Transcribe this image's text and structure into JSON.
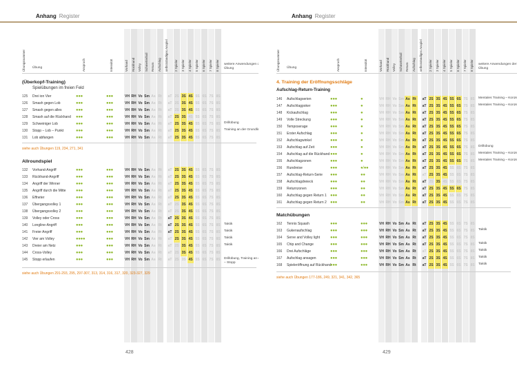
{
  "left": {
    "header": {
      "title": "Anhang",
      "sub": "Register"
    },
    "page_number": "428",
    "columns": {
      "nummer": "Übungsnummer",
      "uebung": "Übung",
      "anspruch": "Anspruch",
      "intensitaet": "Intensität",
      "vorhand": "Vorhand",
      "rueckhand": "Rückhand",
      "volley": "Volley",
      "schmetterball": "Schmetterball",
      "return": "Return",
      "aufschlag": "Aufschlag",
      "selbstaendig": "selbstständiges Anspiel",
      "s2": "2 Spieler",
      "s3": "3 Spieler",
      "s4": "4 Spieler",
      "s5": "5 Spieler",
      "s6": "6 Spieler",
      "s7": "7 Spieler",
      "s8": "8 Spieler",
      "weitere": "weitere Anwendungen der Übung"
    },
    "section1": {
      "title": "(Überkopf-Training)",
      "subtitle": "Spielübungen im freien Feld",
      "rows": [
        {
          "n": "125",
          "t": "Drei ion Vier",
          "d": "●●●",
          "i": "●●●",
          "tags": [
            "VH",
            "RH",
            "Vo",
            "Sm"
          ],
          "p": [
            "3S",
            "4S"
          ],
          "note": ""
        },
        {
          "n": "126",
          "t": "Smash gegen Lob",
          "d": "●●●",
          "i": "●●●",
          "tags": [
            "VH",
            "RH",
            "Vo",
            "Sm"
          ],
          "p": [
            "3S",
            "4S"
          ],
          "note": ""
        },
        {
          "n": "127",
          "t": "Smash gegen alles",
          "d": "●●●",
          "i": "●●●",
          "tags": [
            "VH",
            "RH",
            "Vo",
            "Sm"
          ],
          "p": [
            "3S",
            "4S"
          ],
          "note": ""
        },
        {
          "n": "128",
          "t": "Smash auf die Rückhand",
          "d": "●●●",
          "i": "●●●",
          "tags": [
            "VH",
            "RH",
            "Vo",
            "Sm"
          ],
          "p": [
            "2S",
            "3S"
          ],
          "note": ""
        },
        {
          "n": "129",
          "t": "Schweiniger Lob",
          "d": "●●●",
          "i": "●●●",
          "tags": [
            "VH",
            "RH",
            "Vo",
            "Sm"
          ],
          "p": [
            "2S",
            "3S",
            "4S"
          ],
          "note": "Drillübung"
        },
        {
          "n": "130",
          "t": "Stopp – Lob – Punkt",
          "d": "●●●",
          "i": "●●●",
          "tags": [
            "VH",
            "RH",
            "Vo",
            "Sm"
          ],
          "p": [
            "2S",
            "3S",
            "4S"
          ],
          "note": "Training an der Grundlinie – Stopp"
        },
        {
          "n": "131",
          "t": "Lob abfangen",
          "d": "●●●",
          "i": "●●●",
          "tags": [
            "VH",
            "RH",
            "Vo",
            "Sm"
          ],
          "p": [
            "2S",
            "3S",
            "4S"
          ],
          "note": ""
        }
      ],
      "see": "siehe auch Übungen 119, 234, 271, 341"
    },
    "section2": {
      "title": "Allroundspiel",
      "rows": [
        {
          "n": "132",
          "t": "Vorhand-Angriff",
          "d": "●●●",
          "i": "●●●",
          "tags": [
            "VH",
            "RH",
            "Vo",
            "Sm"
          ],
          "p": [
            "2S",
            "3S",
            "4S"
          ],
          "note": ""
        },
        {
          "n": "133",
          "t": "Rückhand-Angriff",
          "d": "●●●",
          "i": "●●●",
          "tags": [
            "VH",
            "RH",
            "Vo",
            "Sm"
          ],
          "p": [
            "2S",
            "3S",
            "4S"
          ],
          "note": ""
        },
        {
          "n": "134",
          "t": "Angriff der Winner",
          "d": "●●●",
          "i": "●●●",
          "tags": [
            "VH",
            "RH",
            "Vo",
            "Sm"
          ],
          "p": [
            "2S",
            "3S",
            "4S"
          ],
          "note": ""
        },
        {
          "n": "135",
          "t": "Angriff durch die Mitte",
          "d": "●●●",
          "i": "●●●",
          "tags": [
            "VH",
            "RH",
            "Vo",
            "Sm"
          ],
          "p": [
            "2S",
            "3S",
            "4S"
          ],
          "note": ""
        },
        {
          "n": "136",
          "t": "Effneter",
          "d": "●●●",
          "i": "●●●",
          "tags": [
            "VH",
            "RH",
            "Vo",
            "Sm"
          ],
          "p": [
            "2S",
            "3S",
            "4S"
          ],
          "note": ""
        },
        {
          "n": "137",
          "t": "Übergangsvolley 1",
          "d": "●●●",
          "i": "●●●",
          "tags": [
            "VH",
            "RH",
            "Vo",
            "Sm"
          ],
          "p": [
            "3S",
            "4S"
          ],
          "note": ""
        },
        {
          "n": "138",
          "t": "Übergangsvolley 2",
          "d": "●●●",
          "i": "●●●",
          "tags": [
            "VH",
            "RH",
            "Vo",
            "Sm"
          ],
          "p": [
            "3S",
            "4S"
          ],
          "note": ""
        },
        {
          "n": "139",
          "t": "Volley oder Cross",
          "d": "●●●",
          "i": "●●●",
          "tags": [
            "VH",
            "RH",
            "Vo",
            "Sm"
          ],
          "p": [
            "aT",
            "2S",
            "3S",
            "4S"
          ],
          "note": ""
        },
        {
          "n": "140",
          "t": "Longline-Angriff",
          "d": "●●●",
          "i": "●●●",
          "tags": [
            "VH",
            "RH",
            "Vo",
            "Sm"
          ],
          "p": [
            "aT",
            "2S",
            "3S",
            "4S"
          ],
          "note": "Taktik"
        },
        {
          "n": "141",
          "t": "Freier Angriff",
          "d": "●●●",
          "i": "●●●",
          "tags": [
            "VH",
            "RH",
            "Vo",
            "Sm"
          ],
          "p": [
            "aT",
            "2S",
            "3S",
            "4S"
          ],
          "note": "Taktik"
        },
        {
          "n": "142",
          "t": "Vier am Volley",
          "d": "●●●●",
          "i": "●●●",
          "tags": [
            "VH",
            "RH",
            "Vo",
            "Sm"
          ],
          "p": [
            "2S",
            "3S",
            "4S"
          ],
          "note": "Taktik"
        },
        {
          "n": "143",
          "t": "Dreier am Netz",
          "d": "●●●",
          "i": "●●●",
          "tags": [
            "VH",
            "RH",
            "Vo",
            "Sm"
          ],
          "p": [
            "3S",
            "4S"
          ],
          "note": "Taktik"
        },
        {
          "n": "144",
          "t": "Cross-Volley",
          "d": "●●●",
          "i": "●●●",
          "tags": [
            "VH",
            "RH",
            "Vo",
            "Sm"
          ],
          "p": [
            "3S",
            "4S"
          ],
          "note": ""
        },
        {
          "n": "145",
          "t": "Stopp erlaufen",
          "d": "●●●",
          "i": "●●●",
          "tags": [
            "VH",
            "RH",
            "Vo",
            "Sm"
          ],
          "p": [
            "4S"
          ],
          "note": "Drillübung, Training an der Grundlinie – Stopp"
        }
      ],
      "see": "siehe auch Übungen 291-293, 295, 297-307, 313, 314, 316, 317, 320, 323-327, 329"
    }
  },
  "right": {
    "header": {
      "title": "Anhang",
      "sub": "Register"
    },
    "page_number": "429",
    "section1": {
      "title": "4. Training der Eröffnungsschläge",
      "subtitle": "Aufschlag-Return-Training",
      "rows": [
        {
          "n": "146",
          "t": "Aufschlagserien",
          "d": "●●●",
          "i": "●",
          "tags": [
            "As",
            "Rt"
          ],
          "p": [
            "aT",
            "2S",
            "3S",
            "4S",
            "5S",
            "6S"
          ],
          "note": "Mentales Training – Konzentration"
        },
        {
          "n": "147",
          "t": "Aufschlagpoker",
          "d": "●●●",
          "i": "●",
          "tags": [
            "As",
            "Rt"
          ],
          "p": [
            "aT",
            "2S",
            "3S",
            "4S",
            "5S",
            "6S"
          ],
          "note": "Mentales Training – Konzentration"
        },
        {
          "n": "148",
          "t": "Kickaufschlag",
          "d": "●●●",
          "i": "●",
          "tags": [
            "As",
            "Rt"
          ],
          "p": [
            "aT",
            "2S",
            "3S",
            "4S",
            "5S",
            "6S"
          ],
          "note": ""
        },
        {
          "n": "149",
          "t": "Volle Streckung",
          "d": "●●●",
          "i": "●",
          "tags": [
            "As",
            "Rt"
          ],
          "p": [
            "aT",
            "2S",
            "3S",
            "4S",
            "5S",
            "6S"
          ],
          "note": ""
        },
        {
          "n": "150",
          "t": "Temposerage",
          "d": "●●●",
          "i": "●",
          "tags": [
            "As",
            "Rt"
          ],
          "p": [
            "aT",
            "2S",
            "3S",
            "4S",
            "5S",
            "6S"
          ],
          "note": ""
        },
        {
          "n": "151",
          "t": "Erster Aufschlag",
          "d": "●●●",
          "i": "●",
          "tags": [
            "As",
            "Rt"
          ],
          "p": [
            "aT",
            "2S",
            "3S",
            "4S",
            "5S",
            "6S"
          ],
          "note": ""
        },
        {
          "n": "152",
          "t": "Aufschlagwinkel",
          "d": "●●●",
          "i": "●",
          "tags": [
            "As",
            "Rt"
          ],
          "p": [
            "aT",
            "2S",
            "3S",
            "4S",
            "5S",
            "6S"
          ],
          "note": ""
        },
        {
          "n": "153",
          "t": "Aufschlag auf Zeit",
          "d": "●●●",
          "i": "●",
          "tags": [
            "As",
            "Rt"
          ],
          "p": [
            "aT",
            "2S",
            "3S",
            "4S",
            "5S",
            "6S"
          ],
          "note": "Drillübung"
        },
        {
          "n": "154",
          "t": "Aufschlag auf die Rückhand",
          "d": "●●●",
          "i": "●",
          "tags": [
            "As",
            "Rt"
          ],
          "p": [
            "aT",
            "2S",
            "3S",
            "4S",
            "5S",
            "6S"
          ],
          "note": "Mentales Training – Konzentration"
        },
        {
          "n": "155",
          "t": "Aufschlagzonen",
          "d": "●●●",
          "i": "●",
          "tags": [
            "As",
            "Rt"
          ],
          "p": [
            "aT",
            "2S",
            "3S",
            "4S",
            "5S",
            "6S"
          ],
          "note": "Mentales Training – Konzentration"
        },
        {
          "n": "156",
          "t": "Rundreise",
          "d": "●●●",
          "i": "●/●●",
          "tags": [
            "As",
            "Rt"
          ],
          "p": [
            "aT",
            "2S",
            "3S",
            "4S"
          ],
          "note": ""
        },
        {
          "n": "157",
          "t": "Aufschlag-Return-Serie",
          "d": "●●●",
          "i": "●●",
          "tags": [
            "As",
            "Rt"
          ],
          "p": [
            "2S",
            "3S",
            "4S"
          ],
          "note": ""
        },
        {
          "n": "158",
          "t": "Aufschlagdreieck",
          "d": "●●●",
          "i": "●●",
          "tags": [
            "As",
            "Rt"
          ],
          "p": [
            "aT",
            "3S"
          ],
          "note": ""
        },
        {
          "n": "159",
          "t": "Returnzonen",
          "d": "●●●",
          "i": "●●",
          "tags": [
            "As",
            "Rt"
          ],
          "p": [
            "aT",
            "2S",
            "3S",
            "4S",
            "5S",
            "6S"
          ],
          "note": ""
        },
        {
          "n": "160",
          "t": "Aufschlag gegen Return 1",
          "d": "●●●",
          "i": "●●",
          "tags": [
            "As",
            "Rt"
          ],
          "p": [
            "aT",
            "2S",
            "3S",
            "4S"
          ],
          "note": ""
        },
        {
          "n": "161",
          "t": "Aufschlag gegen Return 2",
          "d": "●●●",
          "i": "●●",
          "tags": [
            "As",
            "Rt"
          ],
          "p": [
            "aT",
            "2S",
            "3S",
            "4S"
          ],
          "note": ""
        }
      ]
    },
    "section2": {
      "title": "Matchübungen",
      "rows": [
        {
          "n": "162",
          "t": "Tennis Squash",
          "d": "●●●",
          "i": "●●●",
          "tags": [
            "VH",
            "RH",
            "Vo",
            "Sm",
            "As",
            "Rt"
          ],
          "p": [
            "aT",
            "2S",
            "3S",
            "4S"
          ],
          "note": ""
        },
        {
          "n": "163",
          "t": "Gukenaufschlag",
          "d": "●●●",
          "i": "●●●",
          "tags": [
            "VH",
            "RH",
            "Vo",
            "Sm",
            "As",
            "Rt"
          ],
          "p": [
            "aT",
            "2S",
            "3S",
            "4S"
          ],
          "note": "Taktik"
        },
        {
          "n": "164",
          "t": "Serve and Volley light",
          "d": "●●●",
          "i": "●●●",
          "tags": [
            "VH",
            "RH",
            "Vo",
            "Sm",
            "As",
            "Rt"
          ],
          "p": [
            "aT",
            "2S",
            "3S",
            "4S"
          ],
          "note": ""
        },
        {
          "n": "165",
          "t": "Chip and Change",
          "d": "●●●",
          "i": "●●●",
          "tags": [
            "VH",
            "RH",
            "Vo",
            "Sm",
            "As",
            "Rt"
          ],
          "p": [
            "aT",
            "2S",
            "3S",
            "4S"
          ],
          "note": "Taktik"
        },
        {
          "n": "166",
          "t": "Drei Aufschläge",
          "d": "●●●",
          "i": "●●●",
          "tags": [
            "VH",
            "RH",
            "Vo",
            "Sm",
            "As",
            "Rt"
          ],
          "p": [
            "2S",
            "3S",
            "4S"
          ],
          "note": "Taktik"
        },
        {
          "n": "167",
          "t": "Aufschlag ansagen",
          "d": "●●●",
          "i": "●●●",
          "tags": [
            "VH",
            "RH",
            "Vo",
            "Sm",
            "As",
            "Rt"
          ],
          "p": [
            "aT",
            "2S",
            "3S",
            "4S"
          ],
          "note": "Taktik"
        },
        {
          "n": "168",
          "t": "Spieleröffnung auf Rückhand",
          "d": "●●●",
          "i": "●●●",
          "tags": [
            "VH",
            "RH",
            "Vo",
            "Sm",
            "As",
            "Rt"
          ],
          "p": [
            "aT",
            "2S",
            "3S",
            "4S"
          ],
          "note": "Taktik"
        }
      ],
      "see": "siehe auch Übungen 177-186, 249, 321, 341, 342, 365"
    }
  },
  "colors": {
    "accent": "#e07a10",
    "highlight": "#f6e96b",
    "dots": "#8db82c",
    "stripe": "#efefef"
  }
}
